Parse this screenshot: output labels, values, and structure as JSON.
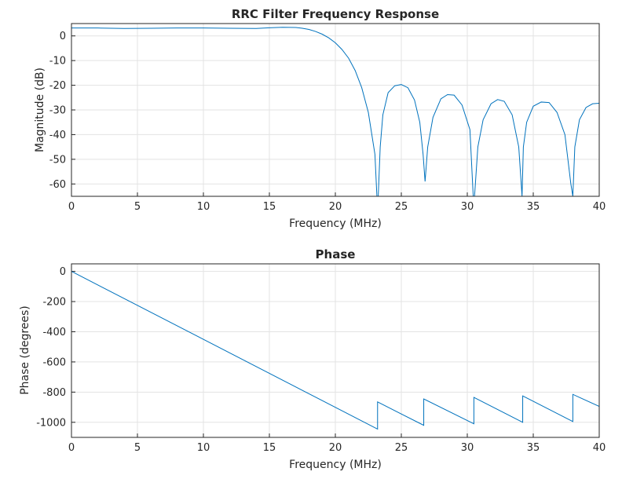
{
  "figure": {
    "background": "#ffffff"
  },
  "chart_data": [
    {
      "type": "line",
      "title": "RRC Filter Frequency Response",
      "xlabel": "Frequency (MHz)",
      "ylabel": "Magnitude (dB)",
      "xlim": [
        0,
        40
      ],
      "ylim": [
        -65,
        5
      ],
      "xticks": [
        0,
        5,
        10,
        15,
        20,
        25,
        30,
        35,
        40
      ],
      "yticks": [
        0,
        -10,
        -20,
        -30,
        -40,
        -50,
        -60
      ],
      "grid": true,
      "line_color": "#0072bd",
      "series": [
        {
          "x": [
            0,
            2,
            4,
            6,
            8,
            10,
            12,
            14,
            15,
            16,
            17,
            17.5,
            18,
            18.5,
            19,
            19.5,
            20,
            20.5,
            21,
            21.5,
            22,
            22.5,
            23.0,
            23.15,
            23.25,
            23.4,
            23.6,
            24.0,
            24.5,
            25.0,
            25.5,
            26.0,
            26.4,
            26.65,
            26.8,
            27.0,
            27.4,
            28.0,
            28.5,
            29.0,
            29.6,
            30.2,
            30.45,
            30.55,
            30.8,
            31.2,
            31.8,
            32.3,
            32.8,
            33.4,
            33.9,
            34.15,
            34.25,
            34.5,
            35.0,
            35.6,
            36.2,
            36.8,
            37.4,
            37.85,
            38.0,
            38.15,
            38.5,
            39.0,
            39.5,
            40.0
          ],
          "y": [
            3.2,
            3.2,
            3.0,
            3.1,
            3.2,
            3.2,
            3.1,
            3.0,
            3.3,
            3.5,
            3.4,
            3.1,
            2.6,
            1.8,
            0.7,
            -0.8,
            -2.8,
            -5.5,
            -9,
            -14,
            -21,
            -31,
            -48,
            -65,
            -65,
            -45,
            -32,
            -23,
            -20.2,
            -19.7,
            -21,
            -26,
            -35,
            -48,
            -59,
            -45,
            -33,
            -25.5,
            -23.8,
            -24,
            -28,
            -38,
            -65,
            -65,
            -45,
            -34,
            -27.5,
            -25.8,
            -26.5,
            -32,
            -45,
            -65,
            -45,
            -35,
            -28.5,
            -26.8,
            -27,
            -31,
            -40,
            -60,
            -65,
            -45,
            -34,
            -29,
            -27.5,
            -27.3
          ]
        }
      ]
    },
    {
      "type": "line",
      "title": "Phase",
      "xlabel": "Frequency (MHz)",
      "ylabel": "Phase (degrees)",
      "xlim": [
        0,
        40
      ],
      "ylim": [
        -1100,
        50
      ],
      "xticks": [
        0,
        5,
        10,
        15,
        20,
        25,
        30,
        35,
        40
      ],
      "yticks": [
        0,
        -200,
        -400,
        -600,
        -800,
        -1000
      ],
      "grid": true,
      "line_color": "#0072bd",
      "series": [
        {
          "x": [
            0,
            23.2,
            23.2,
            26.7,
            26.7,
            30.5,
            30.5,
            34.2,
            34.2,
            38.0,
            38.0,
            40.0
          ],
          "y": [
            0,
            -1045,
            -865,
            -1020,
            -845,
            -1010,
            -835,
            -1000,
            -825,
            -995,
            -815,
            -895
          ]
        }
      ]
    }
  ]
}
